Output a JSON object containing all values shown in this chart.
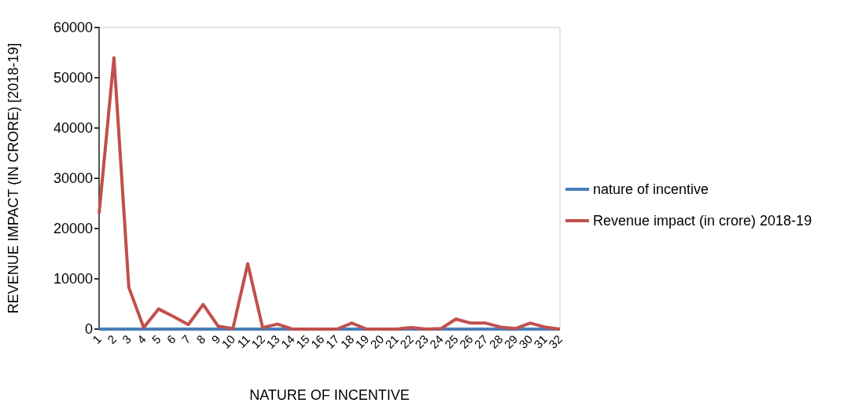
{
  "chart_data": {
    "type": "line",
    "xlabel": "NATURE OF INCENTIVE",
    "ylabel": "REVENUE IMPACT (IN CRORE) [2018-19]",
    "categories": [
      "1",
      "2",
      "3",
      "4",
      "5",
      "6",
      "7",
      "8",
      "9",
      "10",
      "11",
      "12",
      "13",
      "14",
      "15",
      "16",
      "17",
      "18",
      "19",
      "20",
      "21",
      "22",
      "23",
      "24",
      "25",
      "26",
      "27",
      "28",
      "29",
      "30",
      "31",
      "32"
    ],
    "series": [
      {
        "name": "nature of incentive",
        "color": "#4a7ebb",
        "values": [
          0,
          0,
          0,
          0,
          0,
          0,
          0,
          0,
          0,
          0,
          0,
          0,
          0,
          0,
          0,
          0,
          0,
          0,
          0,
          0,
          0,
          0,
          0,
          0,
          0,
          0,
          0,
          0,
          0,
          0,
          0,
          0
        ]
      },
      {
        "name": "Revenue impact (in crore) 2018-19",
        "color": "#c0504d",
        "values": [
          23000,
          54000,
          8300,
          300,
          4000,
          2500,
          900,
          4900,
          600,
          100,
          13000,
          300,
          1000,
          0,
          0,
          0,
          0,
          1200,
          0,
          0,
          0,
          300,
          0,
          100,
          2000,
          1200,
          1200,
          400,
          100,
          1200,
          400,
          0
        ]
      }
    ],
    "ylim": [
      0,
      60000
    ],
    "yticks": [
      0,
      10000,
      20000,
      30000,
      40000,
      50000,
      60000
    ],
    "grid": false,
    "legend": "right",
    "marker": "none",
    "line_style": "solid"
  }
}
